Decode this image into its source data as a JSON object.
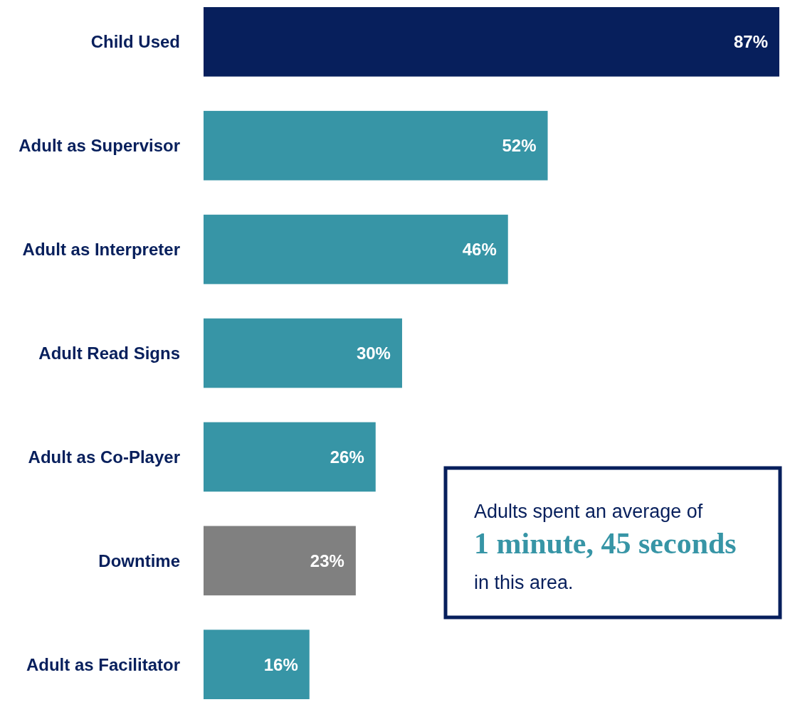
{
  "chart_data": {
    "type": "bar",
    "orientation": "horizontal",
    "categories": [
      "Child Used",
      "Adult as Supervisor",
      "Adult as Interpreter",
      "Adult Read Signs",
      "Adult as Co-Player",
      "Downtime",
      "Adult as Facilitator"
    ],
    "values": [
      87,
      52,
      46,
      30,
      26,
      23,
      16
    ],
    "colors": [
      "#071f5c",
      "#3795a6",
      "#3795a6",
      "#3795a6",
      "#3795a6",
      "#808080",
      "#3795a6"
    ],
    "value_labels": [
      "87%",
      "52%",
      "46%",
      "30%",
      "26%",
      "23%",
      "16%"
    ],
    "annotations": [
      "Adults spent an average of",
      "1 minute, 45 seconds",
      "in this area."
    ]
  }
}
